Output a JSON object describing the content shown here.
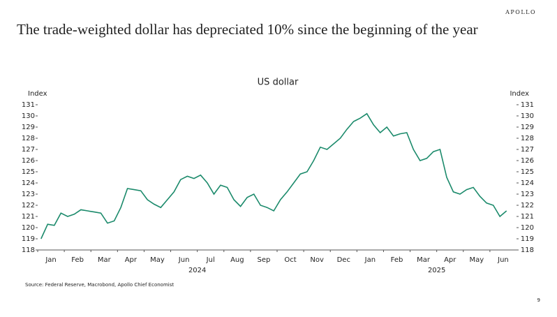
{
  "brand": "APOLLO",
  "page_number": "9",
  "source": "Source: Federal Reserve, Macrobond, Apollo Chief Economist",
  "chart_data": {
    "type": "line",
    "title": "The trade-weighted dollar has depreciated 10% since the beginning of the year",
    "subtitle": "US dollar",
    "ylabel": "Index",
    "y2label": "Index",
    "categories": [
      "Jan",
      "Feb",
      "Mar",
      "Apr",
      "May",
      "Jun",
      "Jul",
      "Aug",
      "Sep",
      "Oct",
      "Nov",
      "Dec",
      "Jan",
      "Feb",
      "Mar",
      "Apr",
      "May",
      "Jun"
    ],
    "year_labels": [
      "2024",
      "2025"
    ],
    "x": [
      "2024-01",
      "2024-01",
      "2024-01",
      "2024-01",
      "2024-02",
      "2024-02",
      "2024-02",
      "2024-02",
      "2024-03",
      "2024-03",
      "2024-03",
      "2024-03",
      "2024-04",
      "2024-04",
      "2024-04",
      "2024-04",
      "2024-05",
      "2024-05",
      "2024-05",
      "2024-05",
      "2024-06",
      "2024-06",
      "2024-06",
      "2024-06",
      "2024-07",
      "2024-07",
      "2024-07",
      "2024-07",
      "2024-08",
      "2024-08",
      "2024-08",
      "2024-08",
      "2024-09",
      "2024-09",
      "2024-09",
      "2024-09",
      "2024-10",
      "2024-10",
      "2024-10",
      "2024-10",
      "2024-11",
      "2024-11",
      "2024-11",
      "2024-11",
      "2024-12",
      "2024-12",
      "2024-12",
      "2024-12",
      "2025-01",
      "2025-01",
      "2025-01",
      "2025-01",
      "2025-02",
      "2025-02",
      "2025-02",
      "2025-02",
      "2025-03",
      "2025-03",
      "2025-03",
      "2025-03",
      "2025-04",
      "2025-04",
      "2025-04",
      "2025-04",
      "2025-05",
      "2025-05",
      "2025-05",
      "2025-05",
      "2025-06",
      "2025-06",
      "2025-06"
    ],
    "series": [
      {
        "name": "US dollar",
        "color": "#1b8a6b",
        "values": [
          119.0,
          120.3,
          120.2,
          121.3,
          121.0,
          121.2,
          121.6,
          121.5,
          121.4,
          121.3,
          120.4,
          120.6,
          121.8,
          123.5,
          123.4,
          123.3,
          122.5,
          122.1,
          121.8,
          122.5,
          123.2,
          124.3,
          124.6,
          124.4,
          124.7,
          124.0,
          123.0,
          123.8,
          123.6,
          122.5,
          121.9,
          122.7,
          123.0,
          122.0,
          121.8,
          121.5,
          122.5,
          123.2,
          124.0,
          124.8,
          125.0,
          126.0,
          127.2,
          127.0,
          127.5,
          128.0,
          128.8,
          129.5,
          129.8,
          130.2,
          129.2,
          128.5,
          129.0,
          128.2,
          128.4,
          128.5,
          127.0,
          126.0,
          126.2,
          126.8,
          127.0,
          124.5,
          123.2,
          123.0,
          123.4,
          123.6,
          122.8,
          122.2,
          122.0,
          121.0,
          121.5
        ]
      }
    ],
    "ylim": [
      118,
      131
    ],
    "yticks": [
      118,
      119,
      120,
      121,
      122,
      123,
      124,
      125,
      126,
      127,
      128,
      129,
      130,
      131
    ],
    "y2lim": [
      118,
      131
    ],
    "y2ticks": [
      118,
      119,
      120,
      121,
      122,
      123,
      124,
      125,
      126,
      127,
      128,
      129,
      130,
      131
    ]
  }
}
